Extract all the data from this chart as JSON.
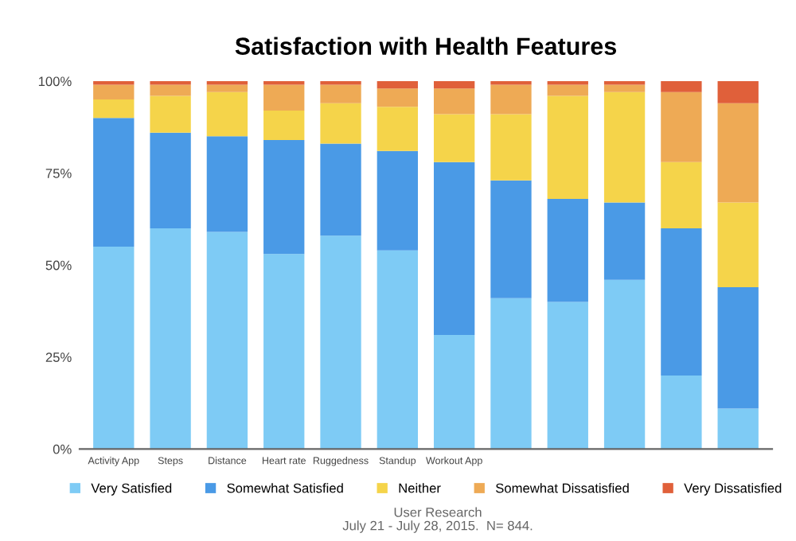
{
  "chart_data": {
    "type": "bar",
    "title": "Satisfaction with Health Features",
    "stacked": true,
    "categories": [
      "Activity App",
      "Steps",
      "Distance",
      "Heart rate",
      "Ruggedness",
      "Standup",
      "Workout App",
      null,
      null,
      null,
      null,
      null
    ],
    "series": [
      {
        "name": "Very Satisfied",
        "color": "#7ecbf5",
        "values": [
          55,
          60,
          59,
          53,
          58,
          54,
          31,
          41,
          40,
          46,
          20,
          11
        ]
      },
      {
        "name": "Somewhat Satisfied",
        "color": "#4a9ae6",
        "values": [
          35,
          26,
          26,
          31,
          25,
          27,
          47,
          32,
          28,
          21,
          40,
          33
        ]
      },
      {
        "name": "Neither",
        "color": "#f5d44a",
        "values": [
          5,
          10,
          12,
          8,
          11,
          12,
          13,
          18,
          28,
          30,
          18,
          23
        ]
      },
      {
        "name": "Somewhat Dissatisfied",
        "color": "#eeaa55",
        "values": [
          4,
          3,
          2,
          7,
          5,
          5,
          7,
          8,
          3,
          2,
          19,
          27
        ]
      },
      {
        "name": "Very Dissatisfied",
        "color": "#e0603a",
        "values": [
          1,
          1,
          1,
          1,
          1,
          2,
          2,
          1,
          1,
          1,
          3,
          6
        ]
      }
    ],
    "ylim": [
      0,
      100
    ],
    "yticks": [
      {
        "value": 0,
        "label": "0%"
      },
      {
        "value": 25,
        "label": "25%"
      },
      {
        "value": 50,
        "label": "50%"
      },
      {
        "value": 75,
        "label": "75%"
      },
      {
        "value": 100,
        "label": "100%"
      }
    ],
    "grid": false,
    "legend": "bottom",
    "annotations": [
      "User Research\nJuly 21 - July 28, 2015.  N= 844."
    ]
  }
}
